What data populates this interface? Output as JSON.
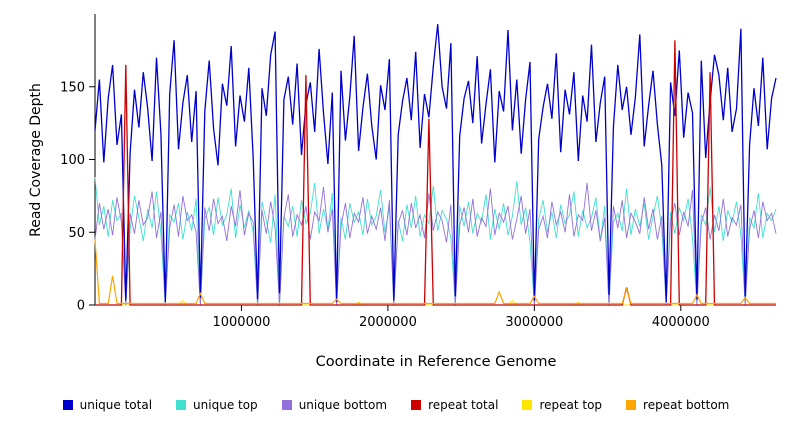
{
  "figure": {
    "ylabel": "Read Coverage Depth",
    "xlabel": "Coordinate in Reference Genome"
  },
  "legend": {
    "items": [
      {
        "label": "unique total",
        "color": "#0000CC"
      },
      {
        "label": "unique top",
        "color": "#40E0D0"
      },
      {
        "label": "unique bottom",
        "color": "#9370DB"
      },
      {
        "label": "repeat total",
        "color": "#CC0000"
      },
      {
        "label": "repeat top",
        "color": "#FFE600"
      },
      {
        "label": "repeat bottom",
        "color": "#FFA500"
      }
    ]
  },
  "chart_data": {
    "type": "line",
    "title": "",
    "xlabel": "Coordinate in Reference Genome",
    "ylabel": "Read Coverage Depth",
    "xlim": [
      0,
      4650000
    ],
    "ylim": [
      0,
      200
    ],
    "grid": false,
    "legend_position": "bottom",
    "x_ticks": [
      {
        "value": 1000000,
        "label": "1000000"
      },
      {
        "value": 2000000,
        "label": "2000000"
      },
      {
        "value": 3000000,
        "label": "3000000"
      },
      {
        "value": 4000000,
        "label": "4000000"
      }
    ],
    "y_ticks": [
      {
        "value": 0,
        "label": "0"
      },
      {
        "value": 50,
        "label": "50"
      },
      {
        "value": 100,
        "label": "100"
      },
      {
        "value": 150,
        "label": "150"
      }
    ],
    "x0": 0,
    "dx": 30000,
    "n_points": 156,
    "draw_order": [
      "repeat top",
      "unique top",
      "unique bottom",
      "unique total",
      "repeat total",
      "repeat bottom"
    ],
    "series": [
      {
        "name": "unique total",
        "color": "#0000CC",
        "width": 1.3,
        "values": [
          120,
          155,
          98,
          142,
          165,
          110,
          131,
          3,
          104,
          148,
          122,
          160,
          135,
          99,
          170,
          118,
          2,
          145,
          182,
          107,
          139,
          158,
          112,
          147,
          5,
          133,
          168,
          121,
          96,
          152,
          137,
          178,
          109,
          144,
          126,
          163,
          101,
          4,
          149,
          130,
          172,
          188,
          8,
          141,
          157,
          124,
          166,
          103,
          138,
          153,
          119,
          176,
          132,
          97,
          146,
          2,
          161,
          113,
          143,
          185,
          106,
          136,
          159,
          123,
          100,
          151,
          134,
          169,
          3,
          117,
          140,
          156,
          127,
          174,
          108,
          145,
          129,
          164,
          193,
          150,
          135,
          180,
          6,
          116,
          142,
          154,
          125,
          171,
          111,
          138,
          162,
          98,
          147,
          133,
          189,
          120,
          155,
          104,
          141,
          167,
          3,
          114,
          136,
          152,
          128,
          173,
          105,
          148,
          131,
          160,
          99,
          144,
          126,
          179,
          112,
          139,
          157,
          7,
          122,
          165,
          134,
          150,
          117,
          143,
          186,
          109,
          137,
          161,
          124,
          96,
          2,
          153,
          130,
          175,
          115,
          146,
          132,
          4,
          168,
          101,
          140,
          172,
          158,
          127,
          163,
          119,
          135,
          190,
          6,
          110,
          149,
          123,
          170,
          107,
          142,
          156
        ]
      },
      {
        "name": "unique top",
        "color": "#40E0D0",
        "width": 0.9,
        "values": [
          88,
          55,
          68,
          47,
          72,
          58,
          63,
          0,
          52,
          75,
          60,
          44,
          66,
          53,
          78,
          49,
          0,
          62,
          57,
          70,
          45,
          64,
          51,
          73,
          0,
          59,
          67,
          48,
          74,
          55,
          62,
          80,
          46,
          69,
          53,
          65,
          50,
          0,
          71,
          58,
          43,
          76,
          0,
          61,
          54,
          68,
          47,
          72,
          56,
          63,
          84,
          49,
          66,
          52,
          77,
          0,
          60,
          45,
          70,
          57,
          64,
          48,
          73,
          55,
          61,
          79,
          50,
          67,
          0,
          58,
          44,
          69,
          53,
          75,
          47,
          62,
          56,
          82,
          51,
          65,
          59,
          46,
          0,
          68,
          54,
          71,
          49,
          63,
          57,
          76,
          45,
          66,
          52,
          70,
          48,
          61,
          85,
          55,
          67,
          43,
          0,
          59,
          72,
          50,
          64,
          46,
          69,
          56,
          62,
          78,
          47,
          65,
          53,
          60,
          74,
          44,
          68,
          0,
          57,
          63,
          51,
          80,
          48,
          66,
          54,
          70,
          45,
          61,
          75,
          52,
          0,
          64,
          49,
          67,
          58,
          73,
          46,
          0,
          62,
          55,
          81,
          50,
          68,
          44,
          65,
          57,
          71,
          48,
          0,
          60,
          53,
          77,
          46,
          63,
          58,
          66
        ]
      },
      {
        "name": "unique bottom",
        "color": "#9370DB",
        "width": 0.9,
        "values": [
          45,
          70,
          52,
          66,
          48,
          74,
          57,
          0,
          63,
          49,
          72,
          55,
          60,
          78,
          46,
          64,
          0,
          53,
          69,
          47,
          75,
          58,
          62,
          50,
          0,
          67,
          51,
          73,
          56,
          61,
          44,
          68,
          54,
          79,
          48,
          63,
          57,
          0,
          65,
          49,
          71,
          53,
          0,
          60,
          76,
          47,
          62,
          55,
          68,
          45,
          64,
          58,
          81,
          50,
          66,
          0,
          54,
          70,
          46,
          63,
          57,
          74,
          49,
          61,
          52,
          67,
          44,
          72,
          0,
          56,
          65,
          48,
          70,
          53,
          62,
          46,
          77,
          51,
          64,
          58,
          43,
          69,
          0,
          55,
          67,
          50,
          73,
          47,
          60,
          54,
          80,
          48,
          63,
          57,
          68,
          45,
          59,
          75,
          49,
          66,
          0,
          52,
          61,
          46,
          71,
          55,
          64,
          50,
          76,
          47,
          62,
          58,
          84,
          51,
          65,
          44,
          60,
          0,
          68,
          53,
          72,
          46,
          63,
          57,
          49,
          74,
          52,
          66,
          45,
          61,
          0,
          58,
          70,
          48,
          64,
          54,
          79,
          0,
          56,
          67,
          45,
          62,
          51,
          73,
          47,
          60,
          55,
          69,
          0,
          52,
          65,
          46,
          71,
          58,
          63,
          49
        ]
      },
      {
        "name": "repeat total",
        "color": "#CC0000",
        "width": 1.3,
        "default": 0,
        "spikes": [
          {
            "i": 7,
            "v": 165
          },
          {
            "i": 48,
            "v": 158
          },
          {
            "i": 76,
            "v": 128
          },
          {
            "i": 121,
            "v": 12
          },
          {
            "i": 132,
            "v": 182
          },
          {
            "i": 140,
            "v": 160
          }
        ]
      },
      {
        "name": "repeat top",
        "color": "#FFE600",
        "width": 0.9,
        "default": 0,
        "spikes": [
          {
            "i": 20,
            "v": 3
          },
          {
            "i": 60,
            "v": 2
          },
          {
            "i": 95,
            "v": 3
          },
          {
            "i": 110,
            "v": 2
          }
        ]
      },
      {
        "name": "repeat bottom",
        "color": "#FFA500",
        "width": 1.2,
        "default": 1,
        "spikes": [
          {
            "i": 0,
            "v": 45
          },
          {
            "i": 4,
            "v": 20
          },
          {
            "i": 24,
            "v": 8
          },
          {
            "i": 55,
            "v": 4
          },
          {
            "i": 92,
            "v": 9
          },
          {
            "i": 100,
            "v": 6
          },
          {
            "i": 121,
            "v": 11
          },
          {
            "i": 137,
            "v": 7
          },
          {
            "i": 148,
            "v": 5
          }
        ]
      }
    ]
  }
}
